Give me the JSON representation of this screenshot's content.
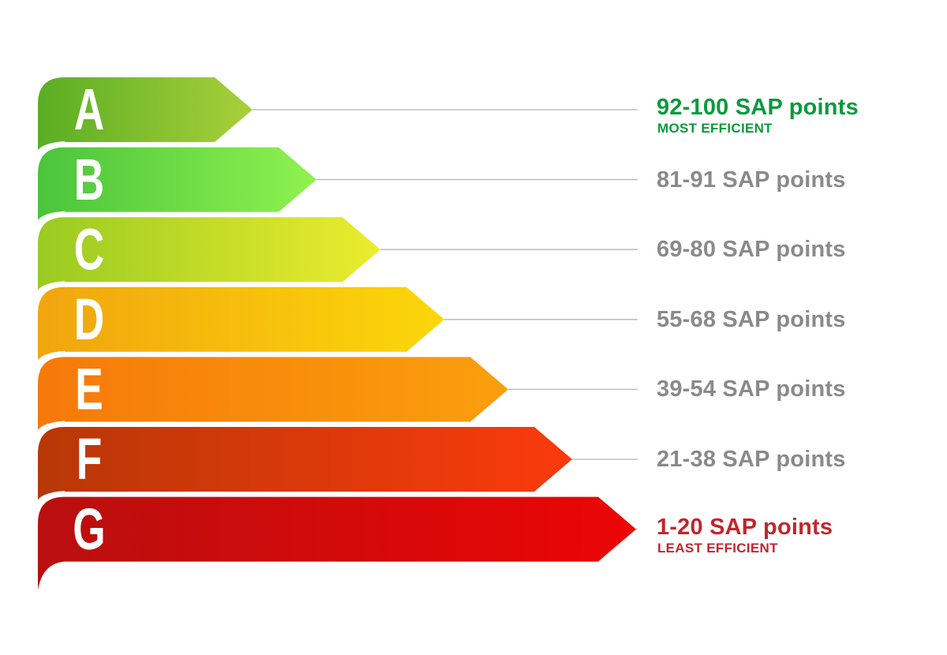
{
  "colors": {
    "label_gray": "#8a8a8a",
    "label_top": "#0a9a3c",
    "label_bottom": "#c0272d",
    "leader_line": "#b5b5b5"
  },
  "bands": [
    {
      "letter": "A",
      "label": "92-100 SAP points",
      "note": "MOST EFFICIENT",
      "color_start": "#5aae23",
      "color_end": "#a9cf3a",
      "label_color": "#0a9a3c"
    },
    {
      "letter": "B",
      "label": "81-91 SAP points",
      "note": "",
      "color_start": "#4bc43c",
      "color_end": "#8ff24f",
      "label_color": "#8a8a8a"
    },
    {
      "letter": "C",
      "label": "69-80 SAP points",
      "note": "",
      "color_start": "#9acb22",
      "color_end": "#ecec2e",
      "label_color": "#8a8a8a"
    },
    {
      "letter": "D",
      "label": "55-68 SAP points",
      "note": "",
      "color_start": "#f1a50e",
      "color_end": "#fbd70a",
      "label_color": "#8a8a8a"
    },
    {
      "letter": "E",
      "label": "39-54 SAP points",
      "note": "",
      "color_start": "#f6790a",
      "color_end": "#fb9f0c",
      "label_color": "#8a8a8a"
    },
    {
      "letter": "F",
      "label": "21-38 SAP points",
      "note": "",
      "color_start": "#b83807",
      "color_end": "#fb3a0c",
      "label_color": "#8a8a8a"
    },
    {
      "letter": "G",
      "label": "1-20 SAP points",
      "note": "LEAST EFFICIENT",
      "color_start": "#b90f0f",
      "color_end": "#ec0505",
      "label_color": "#c0272d"
    }
  ]
}
